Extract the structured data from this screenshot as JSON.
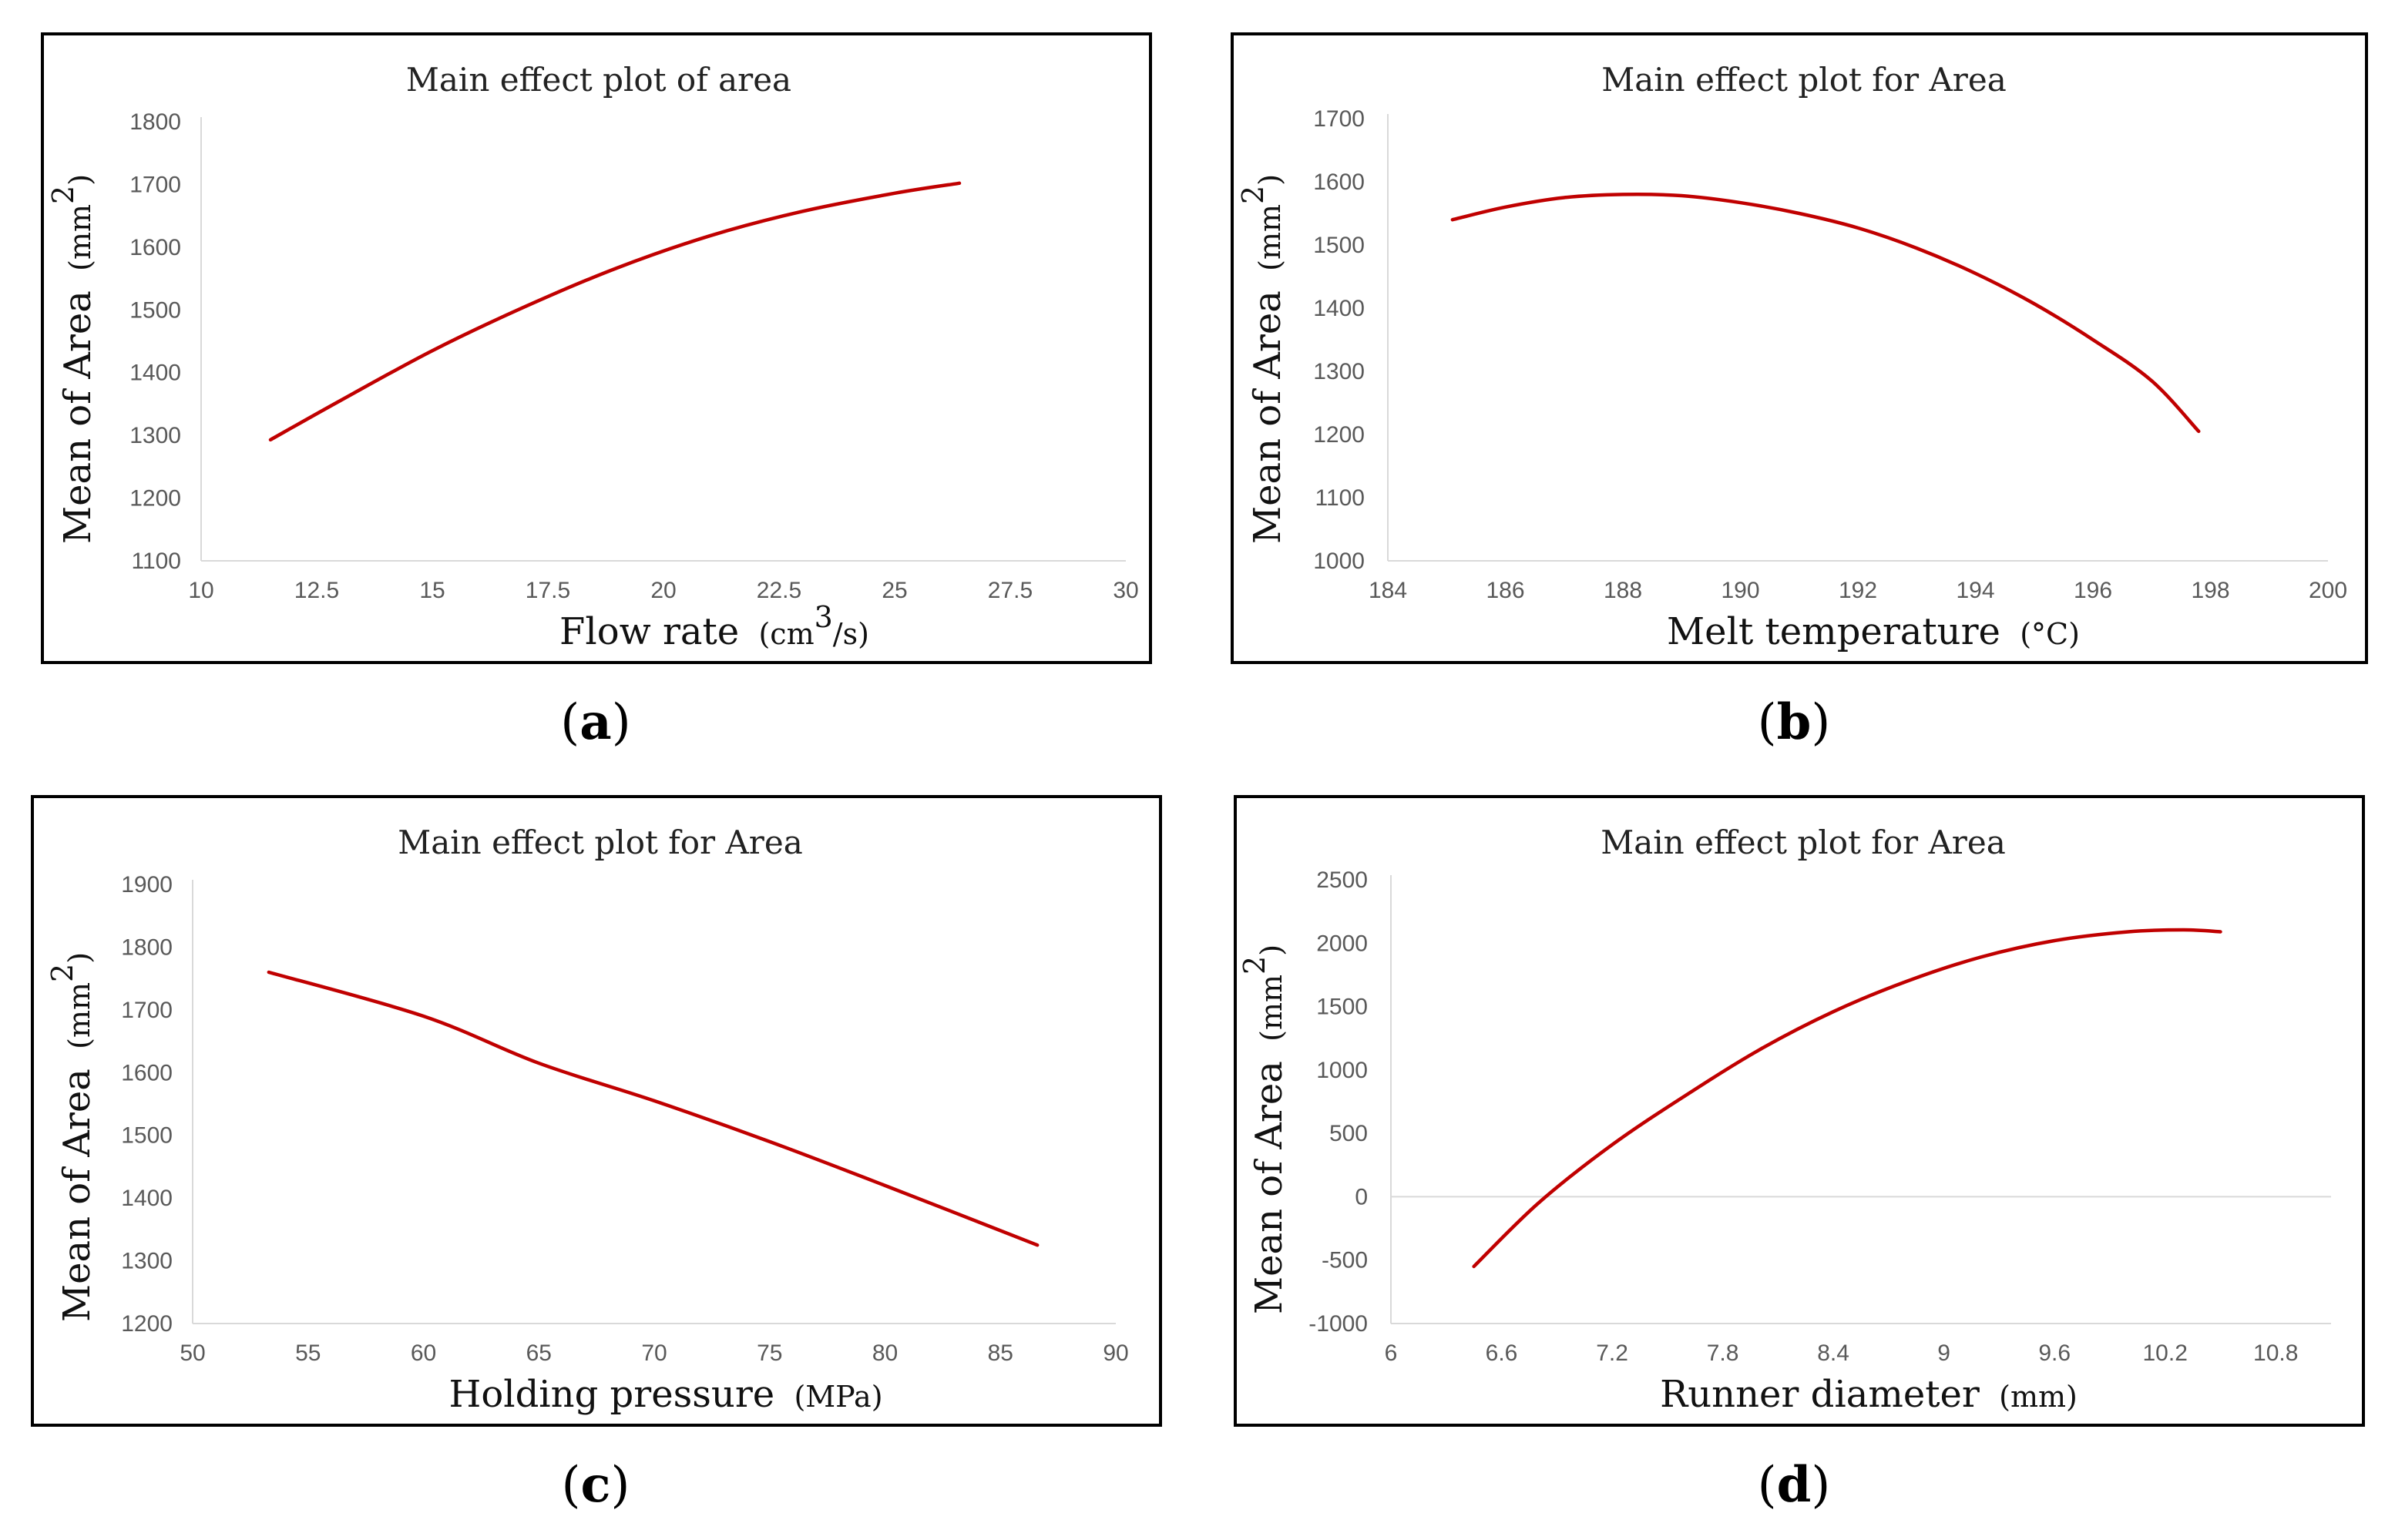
{
  "chart_data": [
    {
      "type": "line",
      "title": "Main effect plot of area",
      "xlabel": "Flow rate",
      "xunit_prefix": "(cm",
      "xunit_sup": "3",
      "xunit_suffix": "/s)",
      "ylabel": "Mean of Area",
      "yunit_prefix": "(mm",
      "yunit_sup": "2",
      "yunit_suffix": ")",
      "xlim": [
        10,
        30
      ],
      "ylim": [
        1100,
        1800
      ],
      "xticks": [
        "10",
        "12.5",
        "15",
        "17.5",
        "20",
        "22.5",
        "25",
        "27.5",
        "30"
      ],
      "yticks": [
        "1800",
        "1700",
        "1600",
        "1500",
        "1400",
        "1300",
        "1200",
        "1100"
      ],
      "x": [
        11.5,
        13,
        15,
        17,
        19,
        21,
        23,
        25,
        26.4
      ],
      "y": [
        1293,
        1355,
        1435,
        1505,
        1567,
        1618,
        1657,
        1686,
        1702
      ],
      "color": "#c00000",
      "grid": false,
      "caption": "a"
    },
    {
      "type": "line",
      "title": "Main effect plot for Area",
      "xlabel": "Melt temperature",
      "xunit_prefix": "(°C)",
      "xunit_sup": "",
      "xunit_suffix": "",
      "ylabel": "Mean of Area",
      "yunit_prefix": "(mm",
      "yunit_sup": "2",
      "yunit_suffix": ")",
      "xlim": [
        184,
        200
      ],
      "ylim": [
        1000,
        1700
      ],
      "xticks": [
        "184",
        "186",
        "188",
        "190",
        "192",
        "194",
        "196",
        "198",
        "200"
      ],
      "yticks": [
        "1700",
        "1600",
        "1500",
        "1400",
        "1300",
        "1200",
        "1100",
        "1000"
      ],
      "x": [
        185.1,
        186,
        187,
        188,
        189,
        190,
        191,
        192,
        193,
        194,
        195,
        196,
        197,
        197.8
      ],
      "y": [
        1540,
        1560,
        1575,
        1580,
        1578,
        1567,
        1550,
        1527,
        1495,
        1455,
        1407,
        1350,
        1285,
        1205
      ],
      "color": "#c00000",
      "grid": false,
      "caption": "b"
    },
    {
      "type": "line",
      "title": "Main effect plot for Area",
      "xlabel": "Holding pressure",
      "xunit_prefix": "(MPa)",
      "xunit_sup": "",
      "xunit_suffix": "",
      "ylabel": "Mean of Area",
      "yunit_prefix": "(mm",
      "yunit_sup": "2",
      "yunit_suffix": ")",
      "xlim": [
        50,
        90
      ],
      "ylim": [
        1200,
        1900
      ],
      "xticks": [
        "50",
        "55",
        "60",
        "65",
        "70",
        "75",
        "80",
        "85",
        "90"
      ],
      "yticks": [
        "1900",
        "1800",
        "1700",
        "1600",
        "1500",
        "1400",
        "1300",
        "1200"
      ],
      "x": [
        53.3,
        60,
        65,
        70,
        75,
        80,
        86.6
      ],
      "y": [
        1760,
        1690,
        1615,
        1555,
        1490,
        1420,
        1325
      ],
      "color": "#c00000",
      "grid": false,
      "caption": "c"
    },
    {
      "type": "line",
      "title": "Main effect plot for Area",
      "xlabel": "Runner diameter",
      "xunit_prefix": "(mm)",
      "xunit_sup": "",
      "xunit_suffix": "",
      "ylabel": "Mean of Area",
      "yunit_prefix": "(mm",
      "yunit_sup": "2",
      "yunit_suffix": ")",
      "xlim": [
        6,
        11.1
      ],
      "ylim": [
        -1000,
        2500
      ],
      "xticks": [
        "6",
        "6.6",
        "7.2",
        "7.8",
        "8.4",
        "9",
        "9.6",
        "10.2",
        "10.8"
      ],
      "xtick_values": [
        6,
        6.6,
        7.2,
        7.8,
        8.4,
        9,
        9.6,
        10.2,
        10.8
      ],
      "yticks": [
        "2500",
        "2000",
        "1500",
        "1000",
        "500",
        "0",
        "-500",
        "-1000"
      ],
      "x": [
        6.45,
        6.8,
        7.2,
        7.6,
        8.0,
        8.4,
        8.8,
        9.2,
        9.6,
        10.0,
        10.3,
        10.5
      ],
      "y": [
        -550,
        -50,
        410,
        800,
        1160,
        1460,
        1700,
        1890,
        2020,
        2090,
        2105,
        2090
      ],
      "color": "#c00000",
      "grid": false,
      "zero_line": true,
      "caption": "d"
    }
  ]
}
